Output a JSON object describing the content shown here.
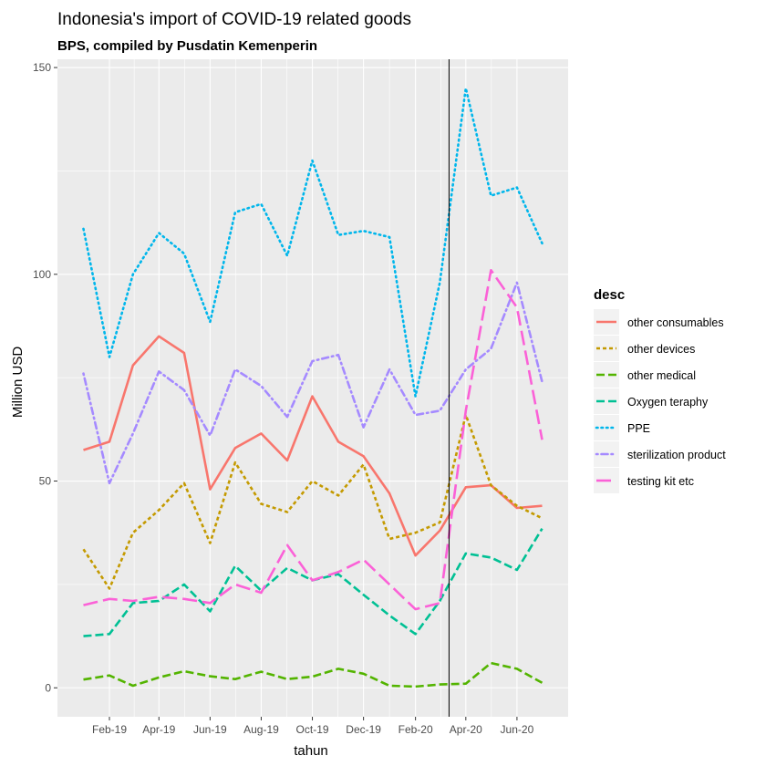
{
  "chart_data": {
    "type": "line",
    "title": "Indonesia's import of COVID-19 related goods",
    "subtitle": "BPS, compiled by Pusdatin Kemenperin",
    "xlabel": "tahun",
    "ylabel": "Million USD",
    "ylim": [
      -7,
      152
    ],
    "yticks": [
      0,
      50,
      100,
      150
    ],
    "grid": true,
    "x": [
      "2019-01",
      "2019-02",
      "2019-03",
      "2019-04",
      "2019-05",
      "2019-06",
      "2019-07",
      "2019-08",
      "2019-09",
      "2019-10",
      "2019-11",
      "2019-12",
      "2020-01",
      "2020-02",
      "2020-03",
      "2020-04",
      "2020-05",
      "2020-06",
      "2020-07"
    ],
    "xlim": [
      "2018-12",
      "2020-08"
    ],
    "xtick_labels": [
      "Feb-19",
      "Apr-19",
      "Jun-19",
      "Aug-19",
      "Oct-19",
      "Dec-19",
      "Feb-20",
      "Apr-20",
      "Jun-20"
    ],
    "xtick_dates": [
      "2019-02",
      "2019-04",
      "2019-06",
      "2019-08",
      "2019-10",
      "2019-12",
      "2020-02",
      "2020-04",
      "2020-06"
    ],
    "vline": "2020-03-12",
    "legend": {
      "title": "desc",
      "placement": "right"
    },
    "series": [
      {
        "name": "other consumables",
        "color": "#F8766D",
        "dash": "solid",
        "values": [
          57.5,
          59.5,
          78,
          85,
          81,
          48,
          58,
          61.5,
          55,
          70.5,
          59.5,
          56,
          47,
          32,
          38,
          48.5,
          49,
          43.5,
          44
        ]
      },
      {
        "name": "other devices",
        "color": "#C49A00",
        "dash": "short",
        "values": [
          33.5,
          24,
          37.5,
          43,
          49.5,
          35,
          54.5,
          44.5,
          42.5,
          50,
          46.5,
          54,
          36,
          37.5,
          40,
          66,
          49,
          44,
          41
        ]
      },
      {
        "name": "other medical",
        "color": "#53B400",
        "dash": "long",
        "values": [
          2,
          3,
          0.5,
          2.5,
          4,
          2.8,
          2.1,
          3.9,
          2.1,
          2.7,
          4.6,
          3.4,
          0.5,
          0.3,
          0.8,
          1,
          6,
          4.6,
          1.2
        ]
      },
      {
        "name": "Oxygen teraphy",
        "color": "#00C094",
        "dash": "long",
        "values": [
          12.5,
          13,
          20.5,
          21,
          25,
          18.5,
          29.5,
          23.5,
          29,
          26,
          27.5,
          22.5,
          17.5,
          13,
          21,
          32.5,
          31.5,
          28.5,
          38.5
        ]
      },
      {
        "name": "PPE",
        "color": "#00B6EB",
        "dash": "dot",
        "values": [
          111,
          80,
          100,
          110,
          105,
          88.5,
          115,
          117,
          104.5,
          127.5,
          109.5,
          110.5,
          109,
          70.5,
          98,
          145,
          119,
          121,
          107.5
        ]
      },
      {
        "name": "sterilization product",
        "color": "#A58AFF",
        "dash": "dotdash",
        "values": [
          76,
          49.5,
          61.5,
          76.5,
          72,
          61,
          77,
          73,
          65.5,
          79,
          80.5,
          63,
          77,
          66,
          67,
          77,
          82,
          98,
          74
        ]
      },
      {
        "name": "testing kit etc",
        "color": "#FB61D7",
        "dash": "longdash",
        "values": [
          20,
          21.5,
          21,
          22,
          21.5,
          20.5,
          25,
          23,
          34.5,
          26,
          28,
          31,
          25,
          19,
          20.5,
          67,
          101,
          92,
          60
        ]
      }
    ]
  }
}
